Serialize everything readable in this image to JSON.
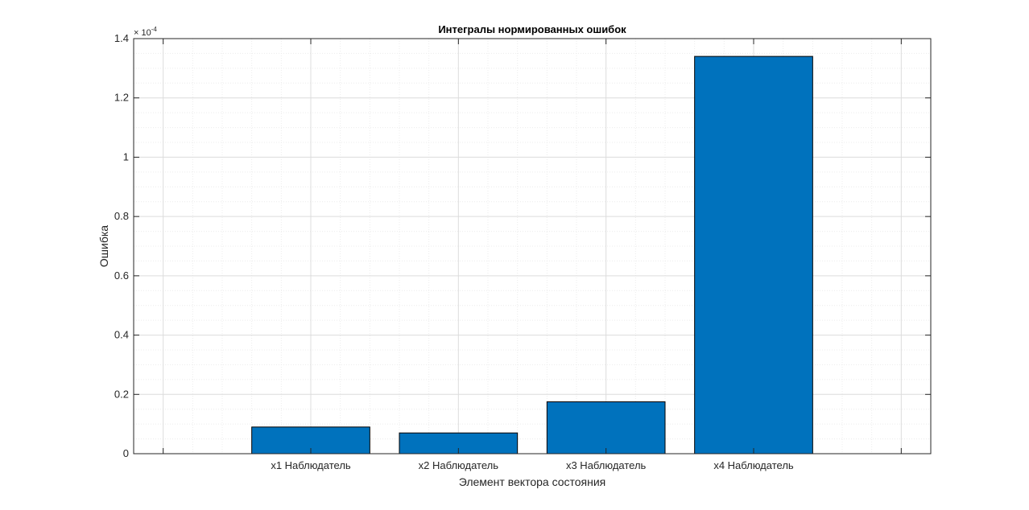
{
  "colors": {
    "background": "#ffffff",
    "bar_fill": "#0072bd",
    "bar_edge": "#000000",
    "axis": "#262626",
    "grid_major": "#dcdcdc",
    "grid_minor": "#ececec"
  },
  "chart_data": {
    "type": "bar",
    "title": "Интегралы нормированных ошибок",
    "xlabel": "Элемент вектора состояния",
    "ylabel": "Ошибка",
    "categories": [
      "x1 Наблюдатель",
      "x2 Наблюдатель",
      "x3 Наблюдатель",
      "x4 Наблюдатель"
    ],
    "values": [
      9e-06,
      7e-06,
      1.75e-05,
      0.000134
    ],
    "ylim": [
      0,
      0.00014
    ],
    "yticks": [
      0,
      2e-05,
      4e-05,
      6e-05,
      8e-05,
      0.0001,
      0.00012,
      0.00014
    ],
    "ytick_labels": [
      "0",
      "0.2",
      "0.4",
      "0.6",
      "0.8",
      "1",
      "1.2",
      "1.4"
    ],
    "y_multiplier_base": "× 10",
    "y_multiplier_exponent": "-4",
    "grid": true,
    "minor_grid": true,
    "legend": "none"
  }
}
